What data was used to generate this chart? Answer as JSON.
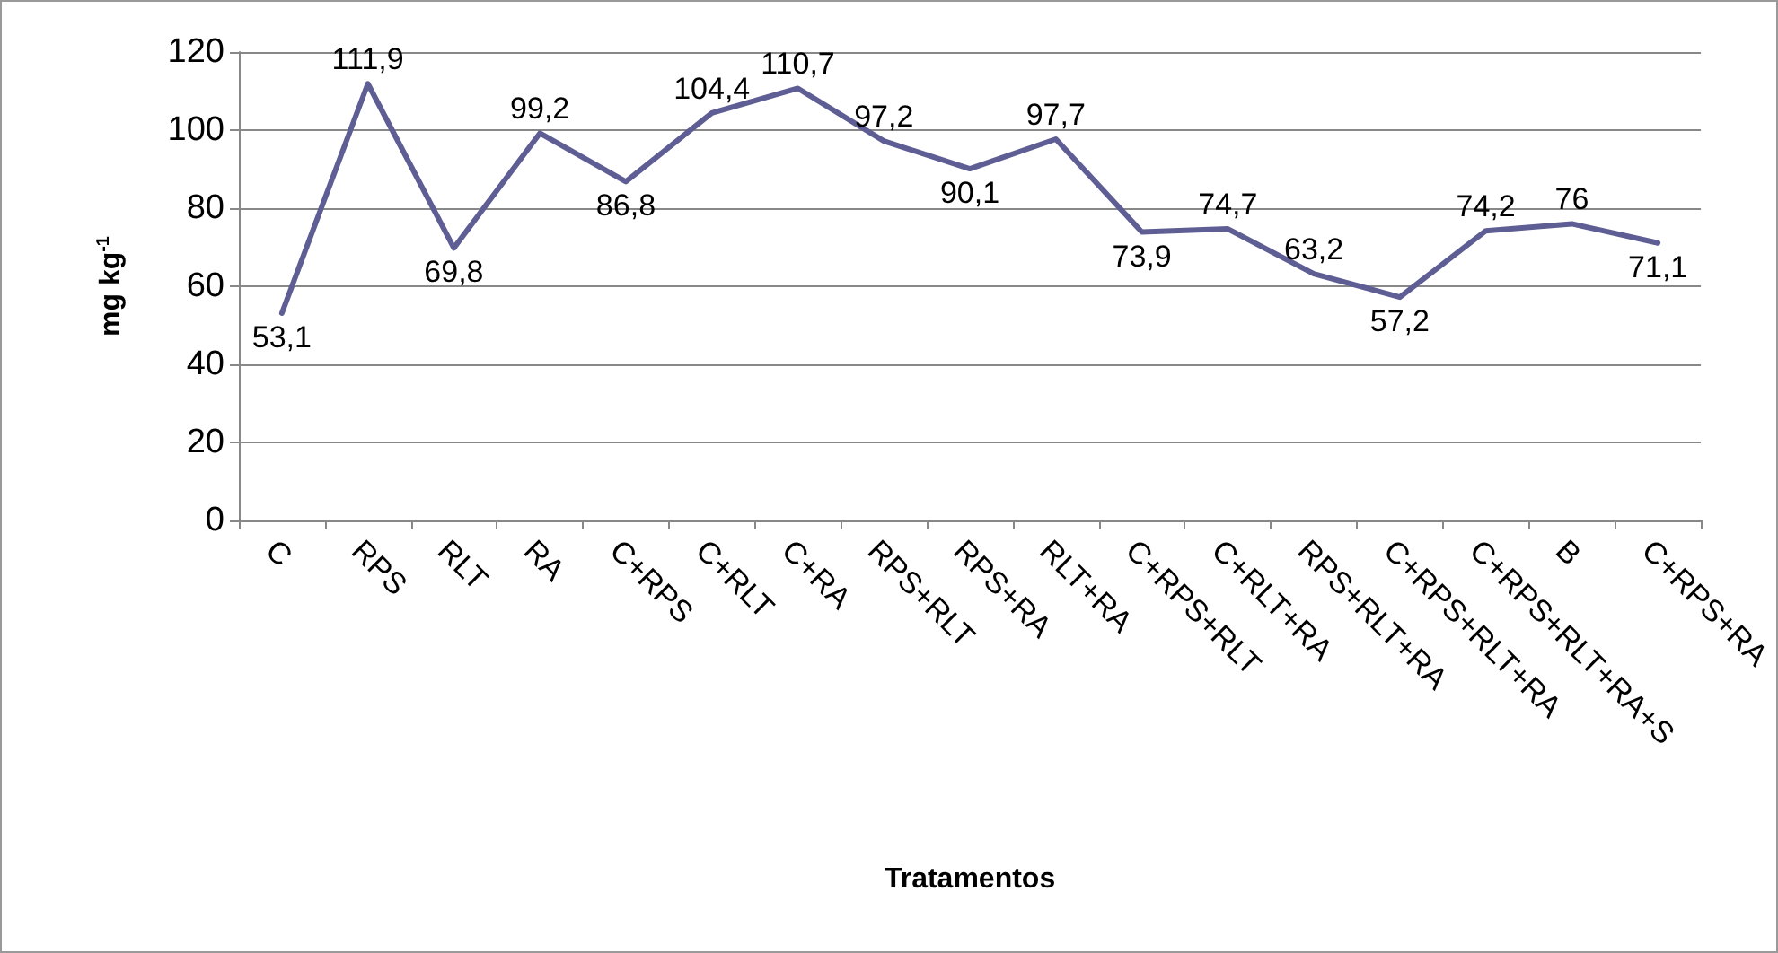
{
  "chart_data": {
    "type": "line",
    "xlabel": "Tratamentos",
    "ylabel": "mg kg$^{-1}$",
    "categories": [
      "C",
      "RPS",
      "RLT",
      "RA",
      "C+RPS",
      "C+RLT",
      "C+RA",
      "RPS+RLT",
      "RPS+RA",
      "RLT+RA",
      "C+RPS+RLT",
      "C+RLT+RA",
      "RPS+RLT+RA",
      "C+RPS+RLT+RA",
      "C+RPS+RLT+RA+S",
      "B",
      "C+RPS+RA"
    ],
    "series": [
      {
        "color": "#5e5e95",
        "values": [
          53.1,
          111.9,
          69.8,
          99.2,
          86.8,
          104.4,
          110.7,
          97.2,
          90.1,
          97.7,
          73.9,
          74.7,
          63.2,
          57.2,
          74.2,
          76,
          71.1
        ],
        "value_labels": [
          "53,1",
          "111,9",
          "69,8",
          "99,2",
          "86,8",
          "104,4",
          "110,7",
          "97,2",
          "90,1",
          "97,7",
          "73,9",
          "74,7",
          "63,2",
          "57,2",
          "74,2",
          "76",
          "71,1"
        ]
      }
    ],
    "ylim": [
      0,
      120
    ],
    "yticks": [
      0,
      20,
      40,
      60,
      80,
      100,
      120
    ],
    "grid": "y",
    "marker": "none",
    "line_style": "solid"
  }
}
